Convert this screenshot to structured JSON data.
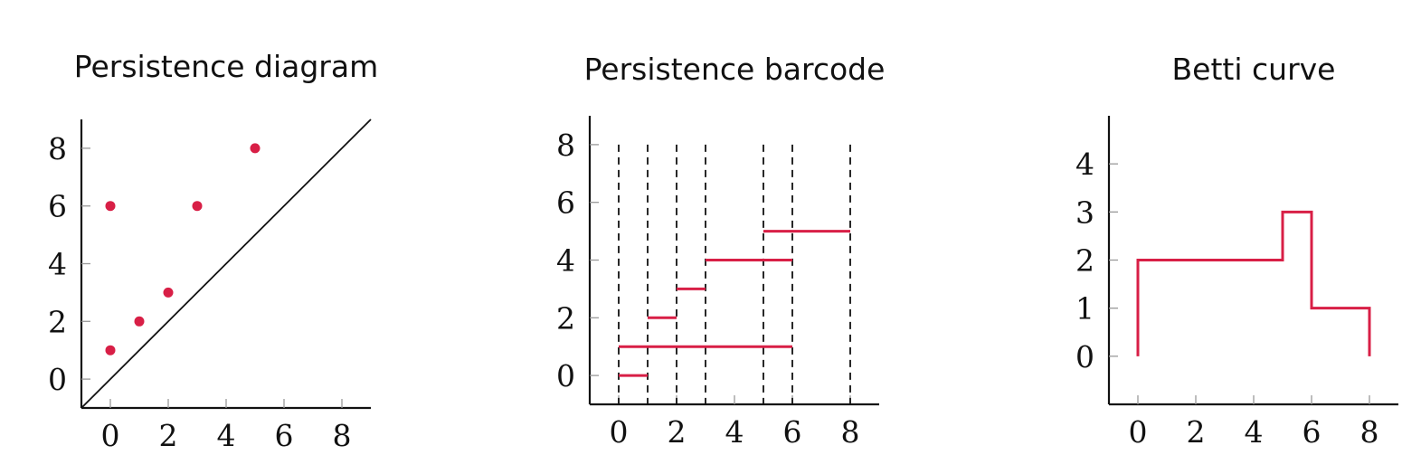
{
  "chart_data": [
    {
      "type": "scatter",
      "title": "Persistence diagram",
      "xlim": [
        -1,
        9
      ],
      "ylim": [
        -1,
        9
      ],
      "xticks": [
        0,
        2,
        4,
        6,
        8
      ],
      "yticks": [
        0,
        2,
        4,
        6,
        8
      ],
      "diagonal": true,
      "points": [
        {
          "x": 0,
          "y": 1
        },
        {
          "x": 0,
          "y": 6
        },
        {
          "x": 1,
          "y": 2
        },
        {
          "x": 2,
          "y": 3
        },
        {
          "x": 3,
          "y": 6
        },
        {
          "x": 5,
          "y": 8
        }
      ],
      "color": "#d81f46"
    },
    {
      "type": "bar",
      "title": "Persistence barcode",
      "xlim": [
        -1,
        9
      ],
      "ylim": [
        -1,
        9
      ],
      "xticks": [
        0,
        2,
        4,
        6,
        8
      ],
      "yticks": [
        0,
        2,
        4,
        6,
        8
      ],
      "vertical_dashed_lines_at": [
        0,
        1,
        2,
        3,
        5,
        6,
        8
      ],
      "bars": [
        {
          "birth": 0,
          "death": 1,
          "y": 0
        },
        {
          "birth": 0,
          "death": 6,
          "y": 1
        },
        {
          "birth": 1,
          "death": 2,
          "y": 2
        },
        {
          "birth": 2,
          "death": 3,
          "y": 3
        },
        {
          "birth": 3,
          "death": 6,
          "y": 4
        },
        {
          "birth": 5,
          "death": 8,
          "y": 5
        }
      ],
      "color": "#d81f46"
    },
    {
      "type": "line",
      "title": "Betti curve",
      "xlim": [
        -1,
        9
      ],
      "ylim": [
        -1,
        5
      ],
      "xticks": [
        0,
        2,
        4,
        6,
        8
      ],
      "yticks": [
        0,
        1,
        2,
        3,
        4
      ],
      "step_points": [
        {
          "x": 0,
          "y": 0
        },
        {
          "x": 0,
          "y": 2
        },
        {
          "x": 5,
          "y": 2
        },
        {
          "x": 5,
          "y": 3
        },
        {
          "x": 6,
          "y": 3
        },
        {
          "x": 6,
          "y": 1
        },
        {
          "x": 8,
          "y": 1
        },
        {
          "x": 8,
          "y": 0
        }
      ],
      "color": "#d81f46"
    }
  ]
}
